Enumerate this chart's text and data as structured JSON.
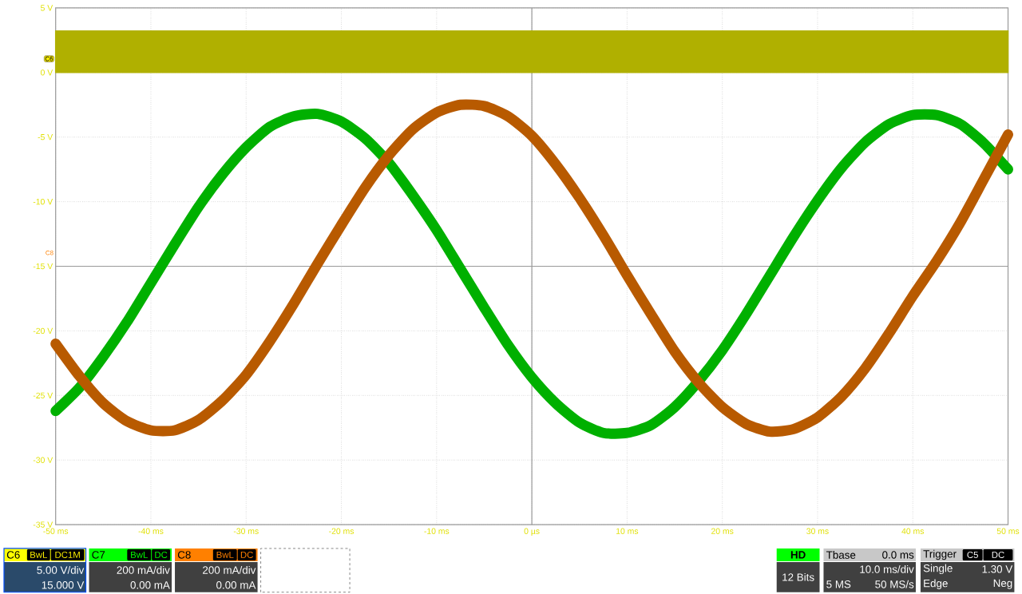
{
  "chart_data": {
    "type": "line",
    "x": [
      -50,
      -47.5,
      -45,
      -42.5,
      -40,
      -37.5,
      -35,
      -32.5,
      -30,
      -27.5,
      -25,
      -22.5,
      -20,
      -17.5,
      -15,
      -12.5,
      -10,
      -7.5,
      -5,
      -2.5,
      0,
      2.5,
      5,
      7.5,
      10,
      12.5,
      15,
      17.5,
      20,
      22.5,
      25,
      27.5,
      30,
      32.5,
      35,
      37.5,
      40,
      42.5,
      45,
      47.5,
      50
    ],
    "series": [
      {
        "color": "#b0b000",
        "x": [
          -50,
          50
        ],
        "values": [
          3.2,
          3.2
        ],
        "lower": [
          0,
          0
        ],
        "upper": [
          3.2,
          3.2
        ]
      },
      {
        "color": "#00b000",
        "values": [
          -26.2,
          -24.4,
          -22.0,
          -19.3,
          -16.3,
          -13.3,
          -10.4,
          -7.9,
          -5.8,
          -4.2,
          -3.4,
          -3.2,
          -3.8,
          -5.1,
          -7.0,
          -9.5,
          -12.2,
          -15.2,
          -18.2,
          -21.1,
          -23.6,
          -25.6,
          -27.1,
          -27.9,
          -27.9,
          -27.3,
          -25.9,
          -23.9,
          -21.5,
          -18.7,
          -15.7,
          -12.7,
          -9.9,
          -7.4,
          -5.4,
          -4.0,
          -3.3,
          -3.3,
          -4.0,
          -5.5,
          -7.5
        ]
      },
      {
        "color": "#b85a00",
        "values": [
          -21.0,
          -23.5,
          -25.6,
          -27.0,
          -27.7,
          -27.7,
          -26.9,
          -25.4,
          -23.4,
          -20.8,
          -17.9,
          -14.8,
          -11.8,
          -8.9,
          -6.4,
          -4.4,
          -3.1,
          -2.5,
          -2.6,
          -3.4,
          -4.9,
          -7.1,
          -9.7,
          -12.6,
          -15.7,
          -18.7,
          -21.6,
          -24.0,
          -25.9,
          -27.2,
          -27.8,
          -27.6,
          -26.7,
          -25.1,
          -22.9,
          -20.2,
          -17.3,
          -14.6,
          -11.6,
          -8.2,
          -4.8
        ]
      }
    ],
    "xlim": [
      -50,
      50
    ],
    "ylim": [
      -35,
      5
    ],
    "xticks": [
      {
        "value": -50,
        "label": "-50 ms"
      },
      {
        "value": -40,
        "label": "-40 ms"
      },
      {
        "value": -30,
        "label": "-30 ms"
      },
      {
        "value": -20,
        "label": "-20 ms"
      },
      {
        "value": -10,
        "label": "-10 ms"
      },
      {
        "value": 0,
        "label": "0 µs"
      },
      {
        "value": 10,
        "label": "10 ms"
      },
      {
        "value": 20,
        "label": "20 ms"
      },
      {
        "value": 30,
        "label": "30 ms"
      },
      {
        "value": 40,
        "label": "40 ms"
      },
      {
        "value": 50,
        "label": "50 ms"
      }
    ],
    "yticks": [
      {
        "value": 5,
        "label": "5 V"
      },
      {
        "value": 0,
        "label": "0 V"
      },
      {
        "value": -5,
        "label": "-5 V"
      },
      {
        "value": -10,
        "label": "-10 V"
      },
      {
        "value": -15,
        "label": "-15 V"
      },
      {
        "value": -20,
        "label": "-20 V"
      },
      {
        "value": -25,
        "label": "-25 V"
      },
      {
        "value": -30,
        "label": "-30 V"
      },
      {
        "value": -35,
        "label": "-35 V"
      }
    ],
    "grid": true,
    "annotations": [
      "C6",
      "C8",
      "C6",
      "BwL",
      "DC1M",
      "5.00 V/div",
      "15.000 V",
      "C7",
      "BwL",
      "DC",
      "200 mA/div",
      "0.00 mA",
      "C8",
      "BwL",
      "DC",
      "200 mA/div",
      "0.00 mA",
      "HD",
      "12 Bits",
      "Tbase",
      "0.0 ms",
      "10.0 ms/div",
      "5 MS",
      "50 MS/s",
      "Trigger",
      "C5",
      "DC",
      "Single",
      "1.30 V",
      "Edge",
      "Neg"
    ]
  }
}
